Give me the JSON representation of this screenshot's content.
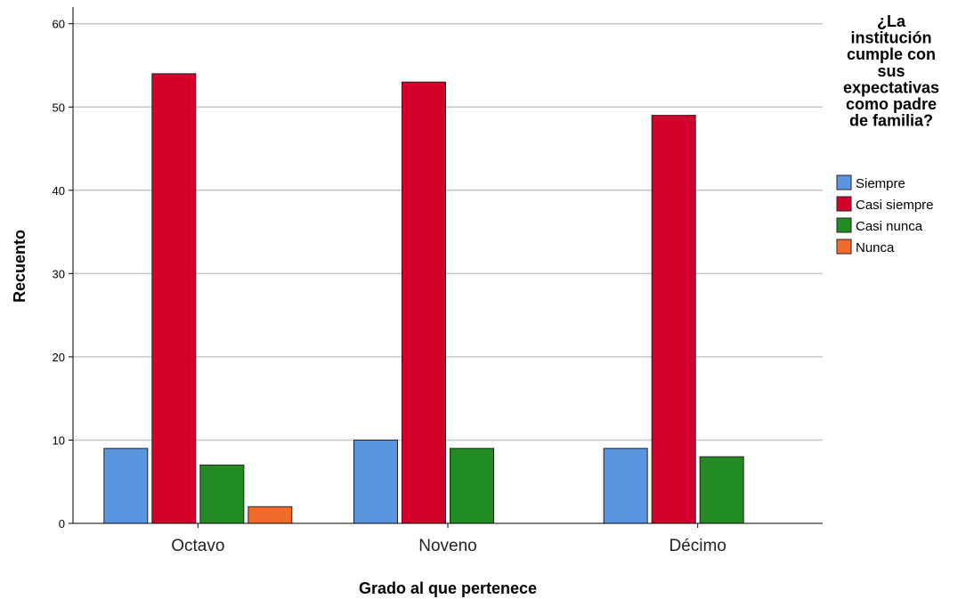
{
  "chart_data": {
    "type": "bar",
    "title": "",
    "xlabel": "Grado al que pertenece",
    "ylabel": "Recuento",
    "ylim": [
      0,
      62
    ],
    "yticks": [
      0,
      10,
      20,
      30,
      40,
      50,
      60
    ],
    "grid": true,
    "legend_position": "top-right",
    "legend_title": "¿La institución cumple con sus expectativas como padre de familia?",
    "legend_title_lines": [
      "¿La",
      "institución",
      "cumple con",
      "sus",
      "expectativas",
      "como padre",
      "de familia?"
    ],
    "categories": [
      "Octavo",
      "Noveno",
      "Décimo"
    ],
    "series": [
      {
        "name": "Siempre",
        "color": "#5A96E0",
        "values": [
          9,
          10,
          9
        ]
      },
      {
        "name": "Casi siempre",
        "color": "#D2002B",
        "values": [
          54,
          53,
          49
        ]
      },
      {
        "name": "Casi nunca",
        "color": "#228B22",
        "values": [
          7,
          9,
          8
        ]
      },
      {
        "name": "Nunca",
        "color": "#F26B2A",
        "values": [
          2,
          0,
          0
        ]
      }
    ]
  }
}
